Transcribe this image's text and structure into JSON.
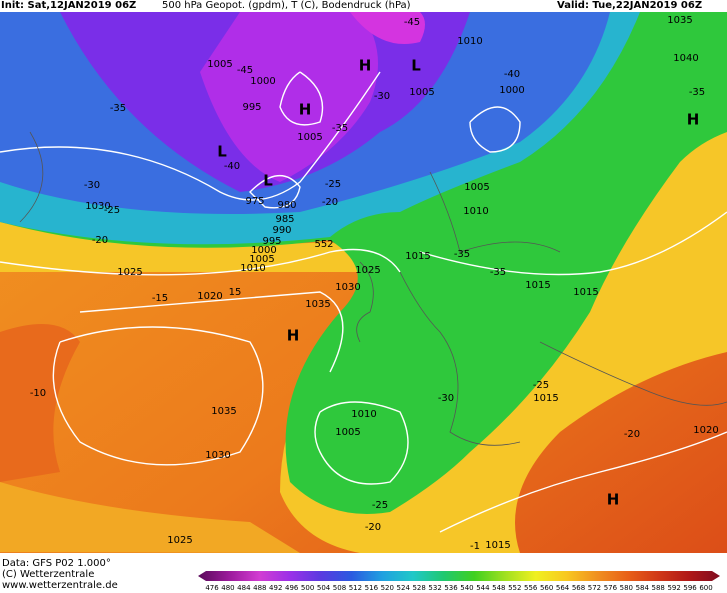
{
  "header": {
    "init": "Init: Sat,12JAN2019 06Z",
    "product": "500 hPa Geopot. (gpdm), T (C), Bodendruck (hPa)",
    "valid": "Valid: Tue,22JAN2019 06Z"
  },
  "map": {
    "labels": [
      "1010",
      "1035",
      "1040",
      "-35",
      "H",
      "1005",
      "-45",
      "1000",
      "995",
      "H",
      "H",
      "L",
      "-30",
      "1005",
      "-40",
      "1000",
      "L",
      "-40",
      "L",
      "975",
      "980",
      "985",
      "990",
      "995",
      "1000",
      "1005",
      "1010",
      "-25",
      "-20",
      "1005",
      "-35",
      "-30",
      "1030",
      "-25",
      "-20",
      "1025",
      "-15",
      "1020",
      "15",
      "1035",
      "552",
      "1025",
      "1030",
      "H",
      "1015",
      "-35",
      "-35",
      "1015",
      "1015",
      "1005",
      "1010",
      "-10",
      "1035",
      "1030",
      "1010",
      "1005",
      "-30",
      "-25",
      "1015",
      "-20",
      "1020",
      "H",
      "-25",
      "-20",
      "1025",
      "-1",
      "1015",
      "-45",
      "-35"
    ]
  },
  "footer": {
    "data": "Data: GFS P02 1.000°",
    "copyright": "(C) Wetterzentrale",
    "url": "www.wetterzentrale.de"
  },
  "colorbar": {
    "labels": [
      476,
      480,
      484,
      488,
      492,
      496,
      500,
      504,
      508,
      512,
      516,
      520,
      524,
      528,
      532,
      536,
      540,
      544,
      548,
      552,
      556,
      560,
      564,
      568,
      572,
      576,
      580,
      584,
      588,
      592,
      596,
      600
    ]
  }
}
